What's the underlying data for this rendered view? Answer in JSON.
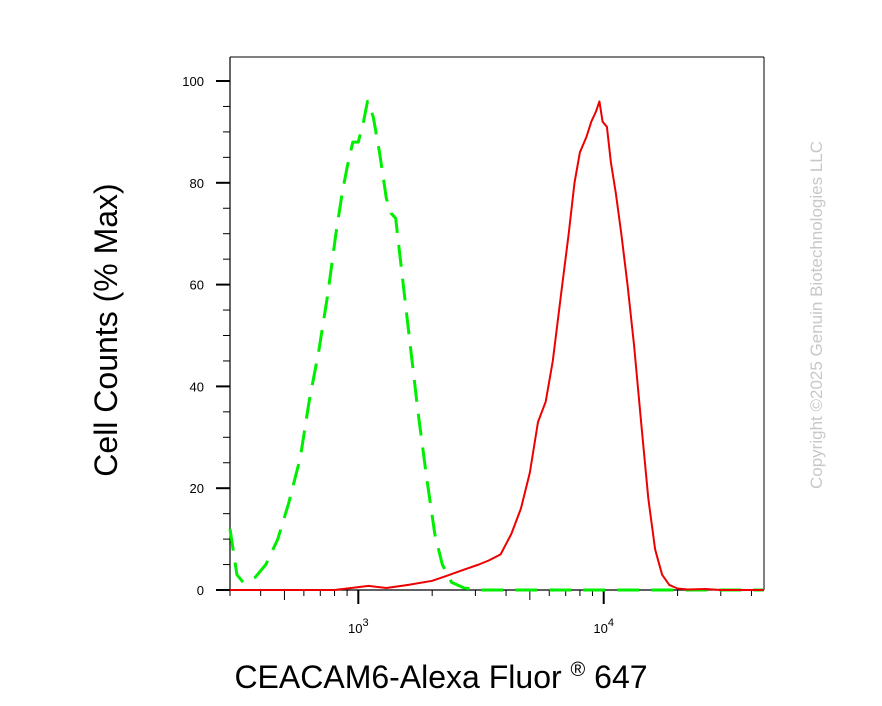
{
  "chart_data": {
    "type": "line",
    "title": "",
    "xlabel": "CEACAM6-Alexa Fluor",
    "xlabel_mark": "®",
    "xlabel_suffix": " 647",
    "ylabel": "Cell Counts (% Max)",
    "xscale": "log",
    "xlim": [
      300,
      45000
    ],
    "ylim": [
      0,
      100
    ],
    "x_ticks": [
      {
        "value": 1000,
        "base": "10",
        "exp": "3"
      },
      {
        "value": 10000,
        "base": "10",
        "exp": "4"
      }
    ],
    "y_ticks": [
      0,
      20,
      40,
      60,
      80,
      100
    ],
    "y_tick_labels": [
      "0",
      "20",
      "40",
      "60",
      "80",
      "100"
    ],
    "grid": false,
    "watermark": "Copyright ©2025 Genuin Biotechnologies LLC",
    "series": [
      {
        "color": "#00ee00",
        "dash": true,
        "points": [
          [
            300,
            12
          ],
          [
            320,
            3
          ],
          [
            340,
            1.5
          ],
          [
            380,
            2.5
          ],
          [
            420,
            5
          ],
          [
            470,
            10
          ],
          [
            520,
            17
          ],
          [
            580,
            26
          ],
          [
            630,
            37
          ],
          [
            690,
            47
          ],
          [
            750,
            58
          ],
          [
            810,
            70
          ],
          [
            860,
            78
          ],
          [
            900,
            83
          ],
          [
            950,
            88
          ],
          [
            1000,
            88
          ],
          [
            1050,
            92
          ],
          [
            1090,
            96
          ],
          [
            1150,
            93
          ],
          [
            1220,
            86
          ],
          [
            1300,
            77
          ],
          [
            1360,
            74
          ],
          [
            1420,
            73
          ],
          [
            1500,
            63
          ],
          [
            1620,
            49
          ],
          [
            1750,
            35
          ],
          [
            1900,
            22
          ],
          [
            2050,
            11
          ],
          [
            2200,
            5
          ],
          [
            2400,
            1.5
          ],
          [
            2700,
            0.4
          ],
          [
            3200,
            0
          ],
          [
            45000,
            0
          ]
        ]
      },
      {
        "color": "#ee0000",
        "dash": false,
        "points": [
          [
            300,
            0
          ],
          [
            800,
            0
          ],
          [
            900,
            0.3
          ],
          [
            1100,
            0.8
          ],
          [
            1300,
            0.4
          ],
          [
            1600,
            1
          ],
          [
            2000,
            1.8
          ],
          [
            2300,
            2.8
          ],
          [
            2700,
            4
          ],
          [
            3100,
            5
          ],
          [
            3400,
            5.8
          ],
          [
            3800,
            7
          ],
          [
            4200,
            11
          ],
          [
            4600,
            16
          ],
          [
            5000,
            23
          ],
          [
            5400,
            33
          ],
          [
            5800,
            37
          ],
          [
            6200,
            45
          ],
          [
            6700,
            58
          ],
          [
            7200,
            70
          ],
          [
            7600,
            80
          ],
          [
            8000,
            86
          ],
          [
            8500,
            89
          ],
          [
            8900,
            92
          ],
          [
            9300,
            94
          ],
          [
            9600,
            96
          ],
          [
            9900,
            92
          ],
          [
            10300,
            91
          ],
          [
            10700,
            84
          ],
          [
            11200,
            78
          ],
          [
            11800,
            70
          ],
          [
            12500,
            60
          ],
          [
            13300,
            48
          ],
          [
            14200,
            33
          ],
          [
            15200,
            18
          ],
          [
            16200,
            8
          ],
          [
            17300,
            3
          ],
          [
            18500,
            1
          ],
          [
            20000,
            0.3
          ],
          [
            22000,
            0.1
          ],
          [
            26000,
            0.2
          ],
          [
            30000,
            0
          ],
          [
            45000,
            0
          ]
        ]
      }
    ]
  }
}
